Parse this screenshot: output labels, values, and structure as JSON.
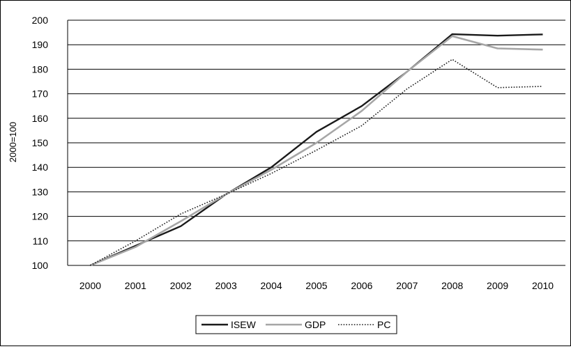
{
  "chart_data": {
    "type": "line",
    "title": "",
    "xlabel": "",
    "ylabel": "2000=100",
    "categories": [
      "2000",
      "2001",
      "2002",
      "2003",
      "2004",
      "2005",
      "2006",
      "2007",
      "2008",
      "2009",
      "2010"
    ],
    "ylim": [
      100,
      200
    ],
    "yticks": [
      "100",
      "110",
      "120",
      "130",
      "140",
      "150",
      "160",
      "170",
      "180",
      "190",
      "200"
    ],
    "grid": "horizontal",
    "legend_position": "bottom",
    "series": [
      {
        "name": "ISEW",
        "color": "#1a1a1a",
        "style": "solid",
        "values": [
          100,
          108,
          116,
          129,
          140,
          154.5,
          165,
          179,
          194.3,
          193.7,
          194.2
        ]
      },
      {
        "name": "GDP",
        "color": "#a6a6a6",
        "style": "solid",
        "values": [
          100,
          107.5,
          118,
          129,
          139,
          150,
          163,
          179,
          193.5,
          188.5,
          188
        ]
      },
      {
        "name": "PC",
        "color": "#1a1a1a",
        "style": "dotted",
        "values": [
          100,
          110,
          121,
          129,
          137.5,
          147,
          157,
          172,
          184,
          172.5,
          173
        ]
      }
    ]
  }
}
